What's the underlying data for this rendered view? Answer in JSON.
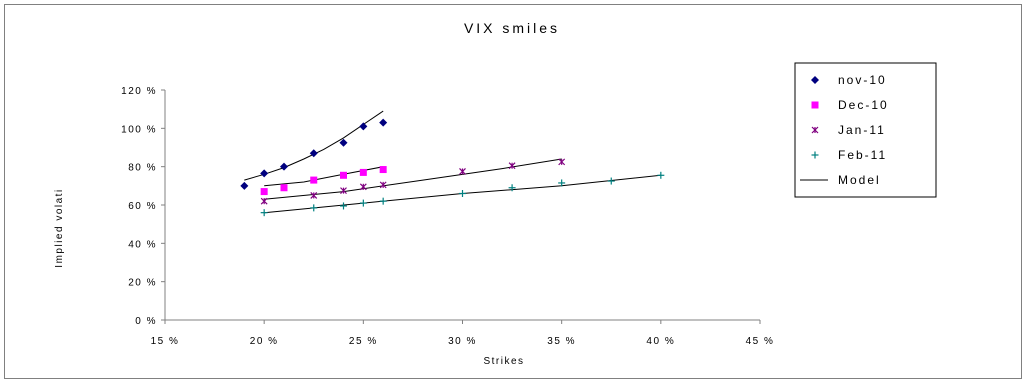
{
  "chart_data": {
    "type": "scatter",
    "title": "VIX smiles",
    "xlabel": "Strikes",
    "ylabel": "Implied volati",
    "xlim": [
      0.15,
      0.45
    ],
    "ylim": [
      0,
      1.2
    ],
    "x_ticks": [
      "15 %",
      "20 %",
      "25 %",
      "30 %",
      "35 %",
      "40 %",
      "45 %"
    ],
    "y_ticks": [
      "0 %",
      "20 %",
      "40 %",
      "60 %",
      "80 %",
      "100 %",
      "120 %"
    ],
    "grid": false,
    "legend_position": "right",
    "series": [
      {
        "name": "nov-10",
        "marker": "diamond",
        "color": "#00007f",
        "x": [
          0.19,
          0.2,
          0.21,
          0.225,
          0.24,
          0.25,
          0.26
        ],
        "y": [
          0.7,
          0.765,
          0.8,
          0.87,
          0.925,
          1.01,
          1.03
        ]
      },
      {
        "name": "Dec-10",
        "marker": "square",
        "color": "#ff00ff",
        "x": [
          0.2,
          0.21,
          0.225,
          0.24,
          0.25,
          0.26
        ],
        "y": [
          0.67,
          0.69,
          0.73,
          0.755,
          0.77,
          0.785
        ]
      },
      {
        "name": "Jan-11",
        "marker": "star",
        "color": "#800080",
        "x": [
          0.2,
          0.225,
          0.24,
          0.25,
          0.26,
          0.3,
          0.325,
          0.35
        ],
        "y": [
          0.62,
          0.65,
          0.675,
          0.695,
          0.705,
          0.775,
          0.805,
          0.825
        ]
      },
      {
        "name": "Feb-11",
        "marker": "plus",
        "color": "#008080",
        "x": [
          0.2,
          0.225,
          0.24,
          0.25,
          0.26,
          0.3,
          0.325,
          0.35,
          0.375,
          0.4
        ],
        "y": [
          0.56,
          0.585,
          0.595,
          0.61,
          0.62,
          0.66,
          0.69,
          0.715,
          0.725,
          0.755
        ]
      }
    ],
    "model": {
      "name": "Model",
      "color": "#000000",
      "lines": [
        {
          "x": [
            0.19,
            0.2,
            0.21,
            0.22,
            0.23,
            0.24,
            0.25,
            0.26
          ],
          "y": [
            0.73,
            0.76,
            0.795,
            0.84,
            0.89,
            0.95,
            1.02,
            1.09
          ]
        },
        {
          "x": [
            0.2,
            0.22,
            0.24,
            0.26
          ],
          "y": [
            0.7,
            0.72,
            0.76,
            0.8
          ]
        },
        {
          "x": [
            0.2,
            0.24,
            0.28,
            0.32,
            0.35
          ],
          "y": [
            0.63,
            0.67,
            0.73,
            0.79,
            0.84
          ]
        },
        {
          "x": [
            0.2,
            0.25,
            0.3,
            0.35,
            0.4
          ],
          "y": [
            0.56,
            0.61,
            0.66,
            0.7,
            0.755
          ]
        }
      ]
    }
  }
}
